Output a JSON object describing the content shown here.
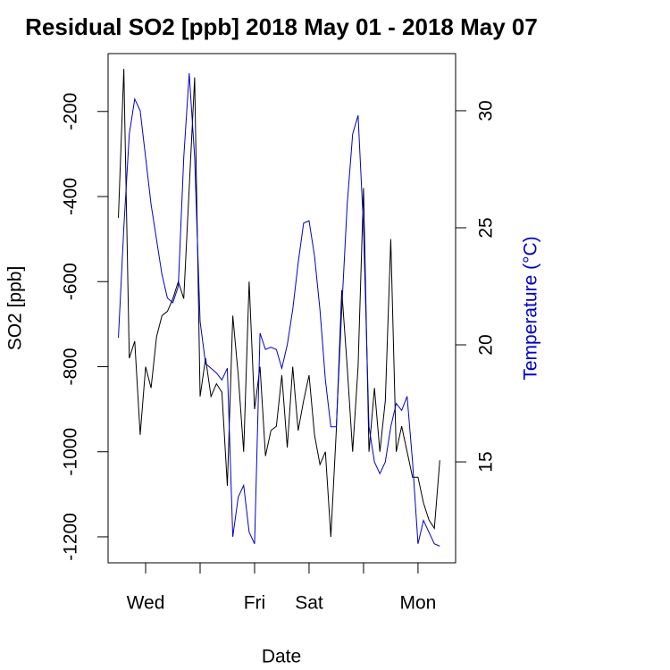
{
  "chart_data": {
    "type": "line",
    "title": "Residual SO2 [ppb] 2018 May 01 - 2018 May 07",
    "xlabel": "Date",
    "ylabel": "SO2 [ppb]",
    "y2label": "Temperature (°C)",
    "x": [
      0.5,
      0.6,
      0.7,
      0.8,
      0.9,
      1.0,
      1.1,
      1.2,
      1.3,
      1.4,
      1.5,
      1.6,
      1.7,
      1.8,
      1.9,
      2.0,
      2.1,
      2.2,
      2.3,
      2.4,
      2.5,
      2.6,
      2.7,
      2.8,
      2.9,
      3.0,
      3.1,
      3.2,
      3.3,
      3.4,
      3.5,
      3.6,
      3.7,
      3.8,
      3.9,
      4.0,
      4.1,
      4.2,
      4.3,
      4.4,
      4.5,
      4.6,
      4.7,
      4.8,
      4.9,
      5.0,
      5.1,
      5.2,
      5.3,
      5.4,
      5.5,
      5.6,
      5.7,
      5.8,
      5.9,
      6.0,
      6.1,
      6.2,
      6.3,
      6.4
    ],
    "series": [
      {
        "name": "SO2",
        "color": "#000000",
        "values": [
          -450,
          -100,
          -780,
          -740,
          -960,
          -800,
          -850,
          -730,
          -680,
          -670,
          -640,
          -600,
          -640,
          -380,
          -120,
          -870,
          -780,
          -870,
          -840,
          -860,
          -1080,
          -680,
          -820,
          -1000,
          -600,
          -900,
          -800,
          -1010,
          -950,
          -940,
          -820,
          -990,
          -800,
          -950,
          -880,
          -820,
          -960,
          -1030,
          -1000,
          -1200,
          -950,
          -620,
          -800,
          -1000,
          -800,
          -380,
          -1000,
          -850,
          -1000,
          -880,
          -500,
          -1000,
          -940,
          -1000,
          -1060,
          -1060,
          -1120,
          -1160,
          -1180,
          -1020
        ]
      },
      {
        "name": "Temperature",
        "color": "#0000cc",
        "axis": "y2",
        "values": [
          20.3,
          25,
          29,
          30.5,
          30,
          28,
          26,
          24.5,
          23,
          22,
          21.8,
          22.5,
          28,
          31.6,
          28,
          21,
          19.2,
          19,
          18.8,
          18.5,
          19,
          11.8,
          13.5,
          14,
          12,
          11.5,
          20.5,
          19.8,
          19.9,
          19.8,
          19,
          20,
          21.5,
          23.5,
          25.2,
          25.3,
          23.8,
          21.5,
          18.5,
          16.5,
          16.5,
          21.5,
          26,
          29,
          29.8,
          25,
          16.5,
          15,
          14.5,
          15,
          16.5,
          17.5,
          17.2,
          17.8,
          15,
          11.5,
          12.5,
          12,
          11.5,
          11.4
        ]
      }
    ],
    "xlim": [
      0.311,
      6.69
    ],
    "xticks": [
      {
        "value": 1,
        "label": "Wed"
      },
      {
        "value": 2,
        "label": null
      },
      {
        "value": 3,
        "label": "Fri"
      },
      {
        "value": 4,
        "label": "Sat"
      },
      {
        "value": 5,
        "label": null
      },
      {
        "value": 6,
        "label": "Mon"
      }
    ],
    "ylim": [
      -1261,
      -64
    ],
    "yticks": [
      -200,
      -400,
      -600,
      -800,
      -1000,
      -1200
    ],
    "y2lim": [
      10.69,
      32.44
    ],
    "y2ticks": [
      15,
      20,
      25,
      30
    ]
  }
}
